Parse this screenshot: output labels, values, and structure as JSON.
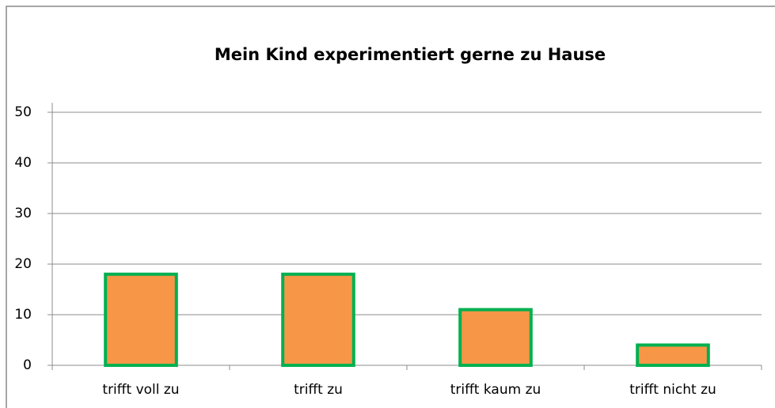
{
  "chart_data": {
    "type": "bar",
    "title": "Mein Kind experimentiert gerne zu Hause",
    "categories": [
      "trifft voll zu",
      "trifft zu",
      "trifft kaum zu",
      "trifft nicht zu"
    ],
    "values": [
      18,
      18,
      11,
      4
    ],
    "color": "#f79646",
    "edgecolor": "#00b050",
    "ylim": [
      0,
      50
    ],
    "yticks": [
      0,
      10,
      20,
      30,
      40,
      50
    ],
    "grid": true
  }
}
